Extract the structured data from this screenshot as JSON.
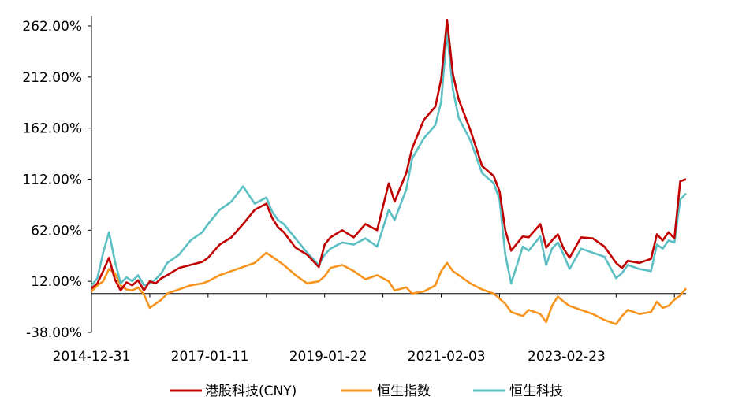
{
  "chart_data": {
    "type": "line",
    "title": "",
    "xlabel": "",
    "ylabel": "",
    "ylim": [
      -38,
      272
    ],
    "y_ticks": [
      "262.00%",
      "212.00%",
      "162.00%",
      "112.00%",
      "62.00%",
      "12.00%",
      "-38.00%"
    ],
    "y_tick_values": [
      262,
      212,
      162,
      112,
      62,
      12,
      -38
    ],
    "x_ticks": [
      "2014-12-31",
      "2017-01-11",
      "2019-01-22",
      "2021-02-03",
      "2023-02-23"
    ],
    "x_tick_values": [
      2015.0,
      2017.03,
      2019.06,
      2021.09,
      2023.15
    ],
    "xlim": [
      2015.0,
      2025.2
    ],
    "legend_position": "bottom",
    "grid": false,
    "series": [
      {
        "name": "港股科技(CNY)",
        "color": "#C00000",
        "x": [
          2015.0,
          2015.1,
          2015.2,
          2015.3,
          2015.4,
          2015.5,
          2015.6,
          2015.7,
          2015.8,
          2015.9,
          2016.0,
          2016.1,
          2016.2,
          2016.3,
          2016.5,
          2016.7,
          2016.9,
          2017.0,
          2017.2,
          2017.4,
          2017.6,
          2017.8,
          2018.0,
          2018.1,
          2018.2,
          2018.3,
          2018.5,
          2018.7,
          2018.9,
          2019.0,
          2019.1,
          2019.3,
          2019.5,
          2019.7,
          2019.9,
          2020.1,
          2020.2,
          2020.4,
          2020.5,
          2020.7,
          2020.9,
          2021.0,
          2021.1,
          2021.2,
          2021.3,
          2021.5,
          2021.7,
          2021.9,
          2022.0,
          2022.1,
          2022.2,
          2022.4,
          2022.5,
          2022.7,
          2022.8,
          2022.9,
          2023.0,
          2023.1,
          2023.2,
          2023.4,
          2023.6,
          2023.8,
          2024.0,
          2024.1,
          2024.2,
          2024.4,
          2024.6,
          2024.7,
          2024.8,
          2024.9,
          2025.0,
          2025.1,
          2025.2
        ],
        "values": [
          5,
          10,
          22,
          35,
          14,
          3,
          11,
          8,
          13,
          3,
          12,
          10,
          15,
          18,
          25,
          28,
          31,
          35,
          48,
          55,
          68,
          82,
          88,
          74,
          65,
          60,
          45,
          38,
          26,
          48,
          55,
          62,
          55,
          68,
          62,
          108,
          90,
          118,
          142,
          170,
          183,
          210,
          268,
          215,
          190,
          160,
          125,
          115,
          100,
          62,
          42,
          56,
          55,
          68,
          45,
          52,
          58,
          44,
          35,
          55,
          54,
          46,
          30,
          25,
          32,
          30,
          34,
          58,
          52,
          60,
          54,
          110,
          112
        ]
      },
      {
        "name": "恒生指数",
        "color": "#F7941D",
        "x": [
          2015.0,
          2015.1,
          2015.2,
          2015.3,
          2015.4,
          2015.5,
          2015.6,
          2015.7,
          2015.8,
          2015.9,
          2016.0,
          2016.1,
          2016.2,
          2016.3,
          2016.5,
          2016.7,
          2016.9,
          2017.0,
          2017.2,
          2017.4,
          2017.6,
          2017.8,
          2018.0,
          2018.1,
          2018.2,
          2018.3,
          2018.5,
          2018.7,
          2018.9,
          2019.0,
          2019.1,
          2019.3,
          2019.5,
          2019.7,
          2019.9,
          2020.1,
          2020.2,
          2020.4,
          2020.5,
          2020.7,
          2020.9,
          2021.0,
          2021.1,
          2021.2,
          2021.3,
          2021.5,
          2021.7,
          2021.9,
          2022.0,
          2022.1,
          2022.2,
          2022.4,
          2022.5,
          2022.7,
          2022.8,
          2022.9,
          2023.0,
          2023.1,
          2023.2,
          2023.4,
          2023.6,
          2023.8,
          2024.0,
          2024.1,
          2024.2,
          2024.4,
          2024.6,
          2024.7,
          2024.8,
          2024.9,
          2025.0,
          2025.1,
          2025.2
        ],
        "values": [
          2,
          8,
          12,
          24,
          20,
          8,
          4,
          3,
          6,
          -1,
          -14,
          -10,
          -6,
          0,
          4,
          8,
          10,
          12,
          18,
          22,
          26,
          30,
          40,
          36,
          32,
          28,
          18,
          10,
          12,
          17,
          25,
          28,
          22,
          14,
          18,
          12,
          3,
          6,
          0,
          2,
          8,
          22,
          30,
          22,
          18,
          10,
          4,
          0,
          -5,
          -10,
          -18,
          -22,
          -16,
          -20,
          -28,
          -12,
          -3,
          -8,
          -12,
          -16,
          -20,
          -26,
          -30,
          -22,
          -16,
          -20,
          -18,
          -8,
          -14,
          -12,
          -6,
          -2,
          5
        ]
      },
      {
        "name": "恒生科技",
        "color": "#5BBFC3",
        "x": [
          2015.0,
          2015.1,
          2015.2,
          2015.3,
          2015.4,
          2015.5,
          2015.6,
          2015.7,
          2015.8,
          2015.9,
          2016.0,
          2016.1,
          2016.2,
          2016.3,
          2016.5,
          2016.7,
          2016.9,
          2017.0,
          2017.2,
          2017.4,
          2017.6,
          2017.8,
          2018.0,
          2018.1,
          2018.2,
          2018.3,
          2018.5,
          2018.7,
          2018.9,
          2019.0,
          2019.1,
          2019.3,
          2019.5,
          2019.7,
          2019.9,
          2020.1,
          2020.2,
          2020.4,
          2020.5,
          2020.7,
          2020.9,
          2021.0,
          2021.1,
          2021.2,
          2021.3,
          2021.5,
          2021.7,
          2021.9,
          2022.0,
          2022.1,
          2022.2,
          2022.4,
          2022.5,
          2022.7,
          2022.8,
          2022.9,
          2023.0,
          2023.1,
          2023.2,
          2023.4,
          2023.6,
          2023.8,
          2024.0,
          2024.1,
          2024.2,
          2024.4,
          2024.6,
          2024.7,
          2024.8,
          2024.9,
          2025.0,
          2025.1,
          2025.2
        ],
        "values": [
          8,
          15,
          40,
          60,
          32,
          10,
          16,
          12,
          18,
          8,
          10,
          14,
          20,
          30,
          38,
          52,
          60,
          68,
          82,
          90,
          105,
          88,
          94,
          80,
          72,
          68,
          54,
          40,
          28,
          38,
          44,
          50,
          48,
          54,
          46,
          82,
          72,
          102,
          132,
          152,
          165,
          188,
          256,
          200,
          172,
          150,
          118,
          108,
          92,
          38,
          10,
          46,
          42,
          56,
          28,
          44,
          50,
          38,
          24,
          44,
          40,
          36,
          15,
          20,
          28,
          24,
          22,
          48,
          44,
          52,
          50,
          92,
          98
        ]
      }
    ]
  }
}
